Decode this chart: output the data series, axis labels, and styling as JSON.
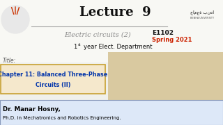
{
  "bg_color": "#f0f0eb",
  "title_text": "Lecture  9",
  "subtitle": "Electric circuits (2)",
  "course_code": "E1102",
  "semester": "Spring 2021",
  "title_label": "Title:",
  "chapter_line1": "Chapter 11: Balanced Three-Phase",
  "chapter_line2": "Circuits (II)",
  "author_name": "Dr. Manar Hosny,",
  "author_title": "Ph.D. in Mechatronics and Robotics Engineering.",
  "chapter_box_facecolor": "#f5e8cc",
  "chapter_box_edgecolor": "#c8a030",
  "author_box_facecolor": "#dde8f8",
  "author_box_edgecolor": "#8899bb",
  "lecture_color": "#111111",
  "subtitle_color": "#888888",
  "course_code_color": "#111111",
  "semester_color": "#cc2200",
  "year_color": "#111111",
  "chapter_text_color": "#0033aa",
  "title_label_color": "#555555",
  "author_name_color": "#000000",
  "author_title_color": "#000000",
  "line_color": "#aaaaaa",
  "cartoon_bg": "#d9c9a0",
  "logo_circle_color": "#cccccc"
}
